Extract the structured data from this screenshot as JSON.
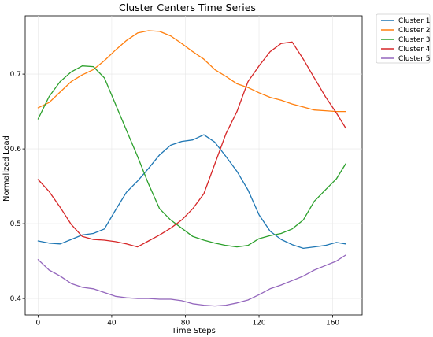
{
  "chart_data": {
    "type": "line",
    "title": "Cluster Centers Time Series",
    "xlabel": "Time Steps",
    "ylabel": "Normalized Load",
    "xlim": [
      -7,
      176
    ],
    "ylim": [
      0.378,
      0.778
    ],
    "xticks": [
      0,
      40,
      80,
      120,
      160
    ],
    "xtick_labels": [
      "0",
      "40",
      "80",
      "120",
      "160"
    ],
    "yticks": [
      0.4,
      0.5,
      0.6,
      0.7
    ],
    "ytick_labels": [
      "0.4",
      "0.5",
      "0.6",
      "0.7"
    ],
    "grid": true,
    "legend_position": "outside-top-right",
    "x": [
      0,
      6,
      12,
      18,
      24,
      30,
      36,
      42,
      48,
      54,
      60,
      66,
      72,
      78,
      84,
      90,
      96,
      102,
      108,
      114,
      120,
      126,
      132,
      138,
      144,
      150,
      156,
      162,
      167
    ],
    "series": [
      {
        "name": "Cluster 1",
        "color": "#1f77b4",
        "values": [
          0.477,
          0.474,
          0.473,
          0.479,
          0.485,
          0.487,
          0.493,
          0.518,
          0.542,
          0.557,
          0.574,
          0.592,
          0.605,
          0.61,
          0.612,
          0.619,
          0.609,
          0.59,
          0.57,
          0.545,
          0.512,
          0.49,
          0.479,
          0.472,
          0.467,
          0.469,
          0.471,
          0.475,
          0.473
        ]
      },
      {
        "name": "Cluster 2",
        "color": "#ff7f0e",
        "values": [
          0.655,
          0.662,
          0.676,
          0.69,
          0.699,
          0.706,
          0.718,
          0.732,
          0.745,
          0.755,
          0.758,
          0.757,
          0.751,
          0.741,
          0.73,
          0.72,
          0.706,
          0.697,
          0.687,
          0.682,
          0.675,
          0.669,
          0.665,
          0.66,
          0.656,
          0.652,
          0.651,
          0.65,
          0.65
        ]
      },
      {
        "name": "Cluster 3",
        "color": "#2ca02c",
        "values": [
          0.64,
          0.67,
          0.69,
          0.703,
          0.711,
          0.71,
          0.695,
          0.66,
          0.625,
          0.59,
          0.553,
          0.52,
          0.505,
          0.494,
          0.483,
          0.478,
          0.474,
          0.471,
          0.469,
          0.471,
          0.48,
          0.484,
          0.487,
          0.493,
          0.505,
          0.53,
          0.545,
          0.56,
          0.58
        ]
      },
      {
        "name": "Cluster 4",
        "color": "#d62728",
        "values": [
          0.559,
          0.543,
          0.522,
          0.499,
          0.483,
          0.479,
          0.478,
          0.476,
          0.473,
          0.469,
          0.477,
          0.485,
          0.494,
          0.505,
          0.52,
          0.54,
          0.58,
          0.62,
          0.65,
          0.69,
          0.711,
          0.73,
          0.741,
          0.743,
          0.72,
          0.695,
          0.67,
          0.648,
          0.628
        ]
      },
      {
        "name": "Cluster 5",
        "color": "#9467bd",
        "values": [
          0.452,
          0.438,
          0.43,
          0.42,
          0.415,
          0.413,
          0.408,
          0.403,
          0.401,
          0.4,
          0.4,
          0.399,
          0.399,
          0.397,
          0.393,
          0.391,
          0.39,
          0.391,
          0.394,
          0.398,
          0.405,
          0.413,
          0.418,
          0.424,
          0.43,
          0.438,
          0.444,
          0.45,
          0.458
        ]
      }
    ]
  }
}
